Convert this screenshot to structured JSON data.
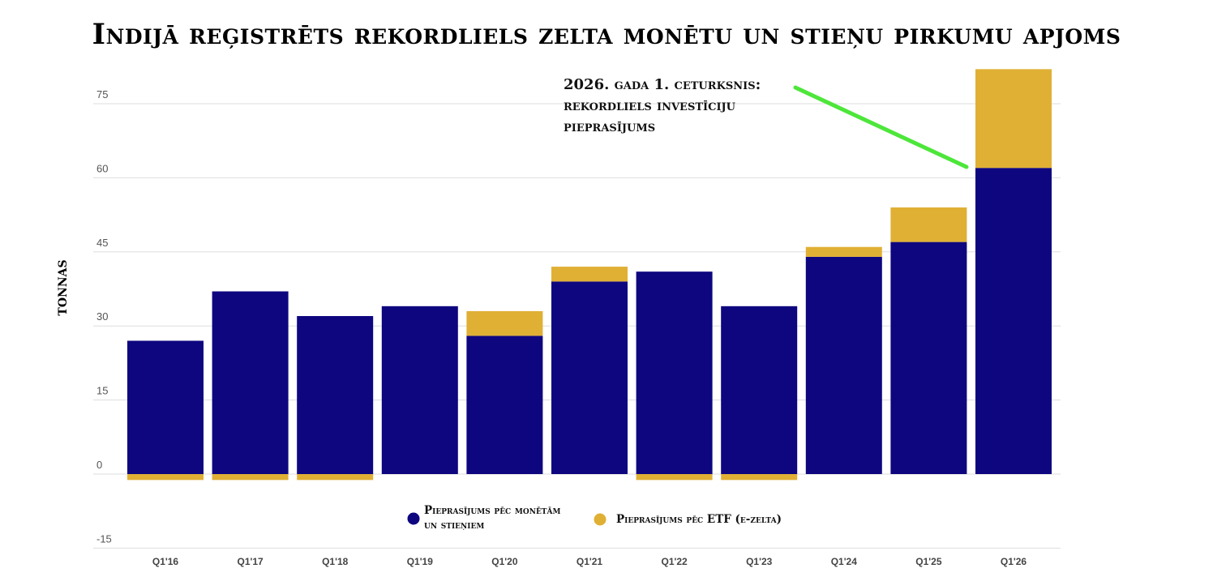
{
  "chart_data": {
    "type": "bar",
    "title": "Indijā reģistrēts rekordliels zelta monētu un stieņu pirkumu apjoms",
    "ylabel": "tonnas",
    "xlabel": "",
    "stacked": true,
    "ylim": [
      -15,
      82
    ],
    "yticks": [
      75,
      60,
      45,
      30,
      15,
      0,
      -15
    ],
    "grid": true,
    "categories": [
      "Q1'16",
      "Q1'17",
      "Q1'18",
      "Q1'19",
      "Q1'20",
      "Q1'21",
      "Q1'22",
      "Q1'23",
      "Q1'24",
      "Q1'25",
      "Q1'26"
    ],
    "series": [
      {
        "name": "Pieprasījums pēc monētām un stieņiem",
        "color": "#0e067f",
        "values": [
          27,
          37,
          32,
          34,
          28,
          39,
          41,
          34,
          44,
          47,
          62
        ]
      },
      {
        "name": "Pieprasījums pēc ETF (e-zelta)",
        "color": "#e0b035",
        "values": [
          -1.2,
          -1.2,
          -1.2,
          0,
          5,
          3,
          -1.2,
          -1.2,
          2,
          7,
          20
        ]
      }
    ],
    "annotation": {
      "lines": [
        "2026. gada 1. ceturksnis:",
        "rekordliels investīciju",
        "pieprasījums"
      ],
      "arrow_color": "#4de63a"
    },
    "legend": {
      "placement": "bottom-center",
      "items": [
        {
          "lines": [
            "Pieprasījums pēc monētām",
            "un stieņiem"
          ],
          "color": "#0e067f"
        },
        {
          "lines": [
            "Pieprasījums pēc ETF (e-zelta)"
          ],
          "color": "#e0b035"
        }
      ]
    }
  }
}
